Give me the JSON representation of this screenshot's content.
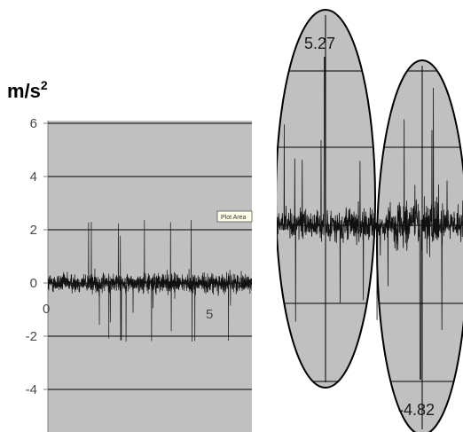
{
  "chart_data": [
    {
      "type": "line",
      "unit_label": "m/s",
      "unit_exponent": "2",
      "ylim": [
        -5,
        6
      ],
      "yticks": [
        "6",
        "4",
        "2",
        "0",
        "-2",
        "-4"
      ],
      "xtick_labels": [
        "0",
        "5"
      ],
      "tooltip": "Plot Area",
      "grid": true,
      "colors": {
        "plot_bg": "#c0c0c0",
        "trace": "#111111",
        "grid": "#000000"
      },
      "series": [
        {
          "mean": 0.0,
          "noise_band": 0.6,
          "max": 2.5,
          "min": -2.2
        }
      ]
    },
    {
      "type": "line",
      "callouts": [
        {
          "label": "5.27",
          "value": 5.27
        },
        {
          "label": "-4.82",
          "value": -4.82
        }
      ],
      "colors": {
        "plot_bg": "#c0c0c0",
        "trace": "#111111",
        "ellipse_stroke": "#000000"
      },
      "series": [
        {
          "mean": 0.0,
          "noise_band": 0.8,
          "max": 5.27,
          "min": -4.82
        }
      ]
    }
  ]
}
